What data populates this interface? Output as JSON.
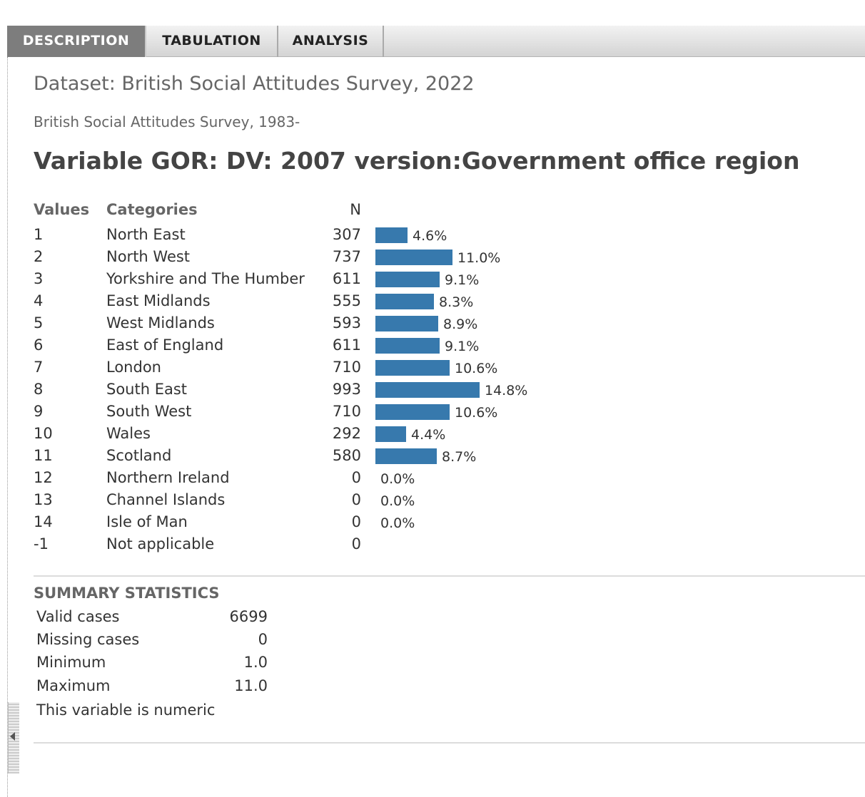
{
  "tabs": [
    {
      "label": "DESCRIPTION",
      "active": true
    },
    {
      "label": "TABULATION",
      "active": false
    },
    {
      "label": "ANALYSIS",
      "active": false
    }
  ],
  "dataset_title": "Dataset: British Social Attitudes Survey, 2022",
  "series_title": "British Social Attitudes Survey, 1983-",
  "variable_title": "Variable GOR: DV: 2007 version:Government office region",
  "frequency_table": {
    "headers": {
      "values": "Values",
      "categories": "Categories",
      "n": "N"
    },
    "bar_color": "#3779ad"
  },
  "chart_data": {
    "type": "bar",
    "orientation": "horizontal",
    "values_codes": [
      "1",
      "2",
      "3",
      "4",
      "5",
      "6",
      "7",
      "8",
      "9",
      "10",
      "11",
      "12",
      "13",
      "14",
      "-1"
    ],
    "categories": [
      "North East",
      "North West",
      "Yorkshire and The Humber",
      "East Midlands",
      "West Midlands",
      "East of England",
      "London",
      "South East",
      "South West",
      "Wales",
      "Scotland",
      "Northern Ireland",
      "Channel Islands",
      "Isle of Man",
      "Not applicable"
    ],
    "n": [
      "307",
      "737",
      "611",
      "555",
      "593",
      "611",
      "710",
      "993",
      "710",
      "292",
      "580",
      "0",
      "0",
      "0",
      "0"
    ],
    "percent": [
      4.6,
      11.0,
      9.1,
      8.3,
      8.9,
      9.1,
      10.6,
      14.8,
      10.6,
      4.4,
      8.7,
      0.0,
      0.0,
      0.0,
      null
    ],
    "percent_labels": [
      "4.6%",
      "11.0%",
      "9.1%",
      "8.3%",
      "8.9%",
      "9.1%",
      "10.6%",
      "14.8%",
      "10.6%",
      "4.4%",
      "8.7%",
      "0.0%",
      "0.0%",
      "0.0%",
      ""
    ]
  },
  "summary": {
    "title": "SUMMARY STATISTICS",
    "rows": [
      {
        "label": "Valid cases",
        "value": "6699"
      },
      {
        "label": "Missing cases",
        "value": "0"
      },
      {
        "label": "Minimum",
        "value": "1.0"
      },
      {
        "label": "Maximum",
        "value": "11.0"
      }
    ],
    "note": "This variable is numeric"
  }
}
